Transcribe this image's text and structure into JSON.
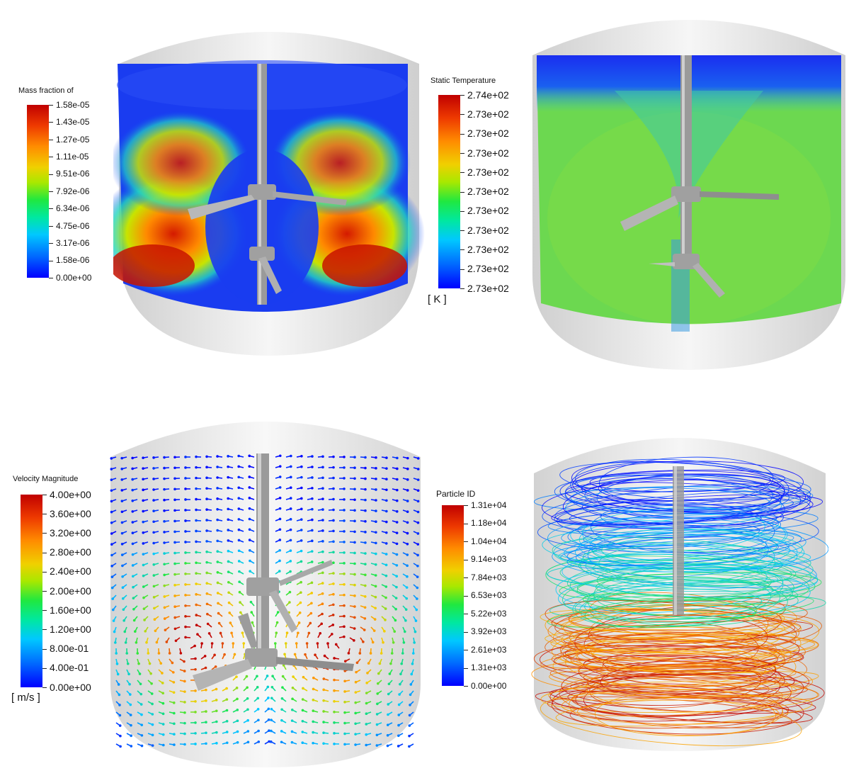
{
  "panels": [
    {
      "id": "mass-fraction",
      "legend": {
        "title": "Mass fraction of",
        "unit": "",
        "labels": [
          "1.58e-05",
          "1.43e-05",
          "1.27e-05",
          "1.11e-05",
          "9.51e-06",
          "7.92e-06",
          "6.34e-06",
          "4.75e-06",
          "3.17e-06",
          "1.58e-06",
          "0.00e+00"
        ]
      }
    },
    {
      "id": "static-temperature",
      "legend": {
        "title": "Static Temperature",
        "unit": "[ K ]",
        "labels": [
          "2.74e+02",
          "2.73e+02",
          "2.73e+02",
          "2.73e+02",
          "2.73e+02",
          "2.73e+02",
          "2.73e+02",
          "2.73e+02",
          "2.73e+02",
          "2.73e+02",
          "2.73e+02"
        ]
      }
    },
    {
      "id": "velocity-magnitude",
      "legend": {
        "title": "Velocity Magnitude",
        "unit": "[ m/s ]",
        "labels": [
          "4.00e+00",
          "3.60e+00",
          "3.20e+00",
          "2.80e+00",
          "2.40e+00",
          "2.00e+00",
          "1.60e+00",
          "1.20e+00",
          "8.00e-01",
          "4.00e-01",
          "0.00e+00"
        ]
      }
    },
    {
      "id": "particle-id",
      "legend": {
        "title": "Particle ID",
        "unit": "",
        "labels": [
          "1.31e+04",
          "1.18e+04",
          "1.04e+04",
          "9.14e+03",
          "7.84e+03",
          "6.53e+03",
          "5.22e+03",
          "3.92e+03",
          "2.61e+03",
          "1.31e+03",
          "0.00e+00"
        ]
      }
    }
  ],
  "colors": {
    "colormap": [
      "#0000ff",
      "#00c8ff",
      "#20e840",
      "#f0d000",
      "#ff8c00",
      "#c00000"
    ],
    "tank_shell": "#e6e6e6",
    "shaft": "#a8a8a8"
  }
}
